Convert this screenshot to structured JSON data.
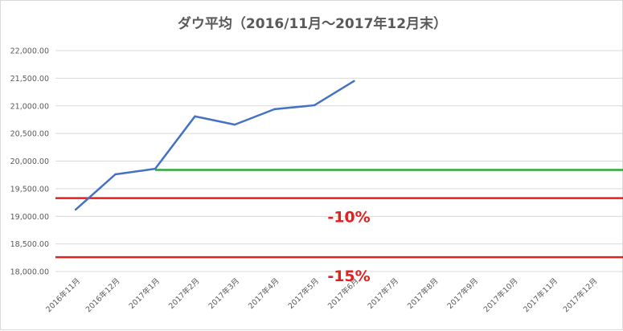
{
  "chart_data": {
    "type": "line",
    "title": "ダウ平均（2016/11月～2017年12月末）",
    "xlabel": "",
    "ylabel": "",
    "categories": [
      "2016年11月",
      "2016年12月",
      "2017年1月",
      "2017年2月",
      "2017年3月",
      "2017年4月",
      "2017年5月",
      "2017年6月",
      "2017年7月",
      "2017年8月",
      "2017年9月",
      "2017年10月",
      "2017年11月",
      "2017年12月"
    ],
    "series": [
      {
        "values": [
          19120,
          19760,
          19860,
          20810,
          20660,
          20940,
          21010,
          21450,
          null,
          null,
          null,
          null,
          null,
          null
        ],
        "color": "#4472c4"
      }
    ],
    "ylim": [
      18000,
      22000
    ],
    "yticks": [
      18000,
      18500,
      19000,
      19500,
      20000,
      20500,
      21000,
      21500,
      22000
    ],
    "ytick_labels": [
      "18,000.00",
      "18,500.00",
      "19,000.00",
      "19,500.00",
      "20,000.00",
      "20,500.00",
      "21,000.00",
      "21,500.00",
      "22,000.00"
    ],
    "grid": true,
    "reference_lines": [
      {
        "value": 19840,
        "from_category": 2,
        "color": "#2ea836"
      },
      {
        "value": 19330,
        "from_category": 0,
        "color": "#e32020",
        "label": "-10%"
      },
      {
        "value": 18260,
        "from_category": 0,
        "color": "#e32020",
        "label": "-15%"
      }
    ]
  }
}
